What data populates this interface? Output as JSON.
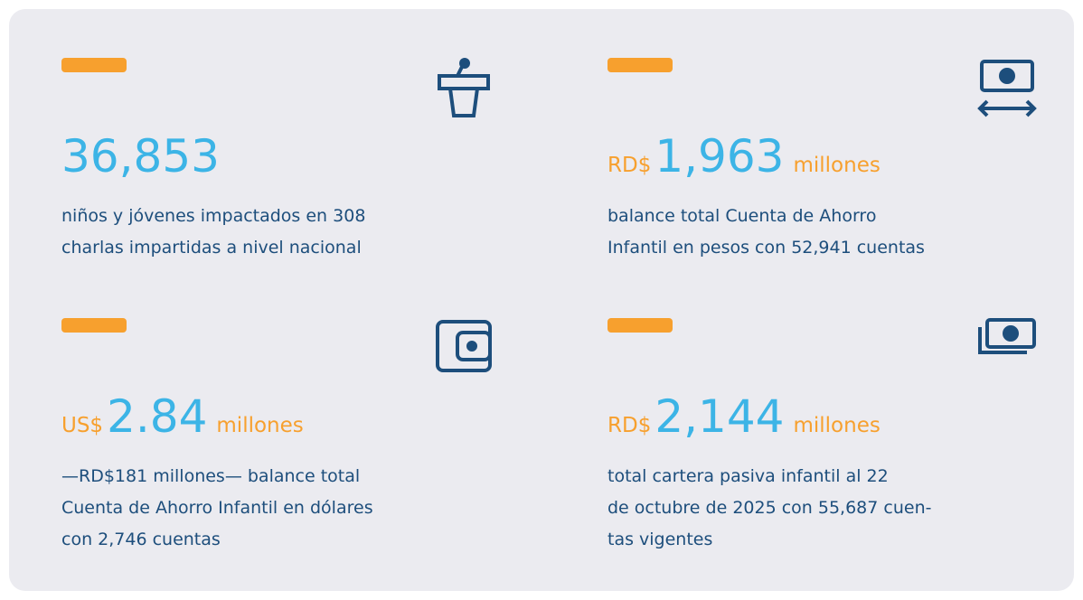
{
  "stats": [
    {
      "value": "36,853",
      "lines": [
        "niños y jóvenes impactados en 308",
        "charlas impartidas a nivel nacional"
      ]
    },
    {
      "prefix": "RD$",
      "value": "1,963",
      "suffix": "millones",
      "lines": [
        "balance total Cuenta de Ahorro",
        "Infantil en pesos con 52,941 cuentas"
      ]
    },
    {
      "prefix": "US$",
      "value": "2.84",
      "suffix": "millones",
      "lines": [
        "—RD$181 millones— balance total",
        "Cuenta de Ahorro Infantil en dólares",
        "con 2,746 cuentas"
      ]
    },
    {
      "prefix": "RD$",
      "value": "2,144",
      "suffix": "millones",
      "lines": [
        "total cartera pasiva infantil al 22",
        "de octubre de 2025 con 55,687 cuen-",
        "tas vigentes"
      ]
    }
  ]
}
